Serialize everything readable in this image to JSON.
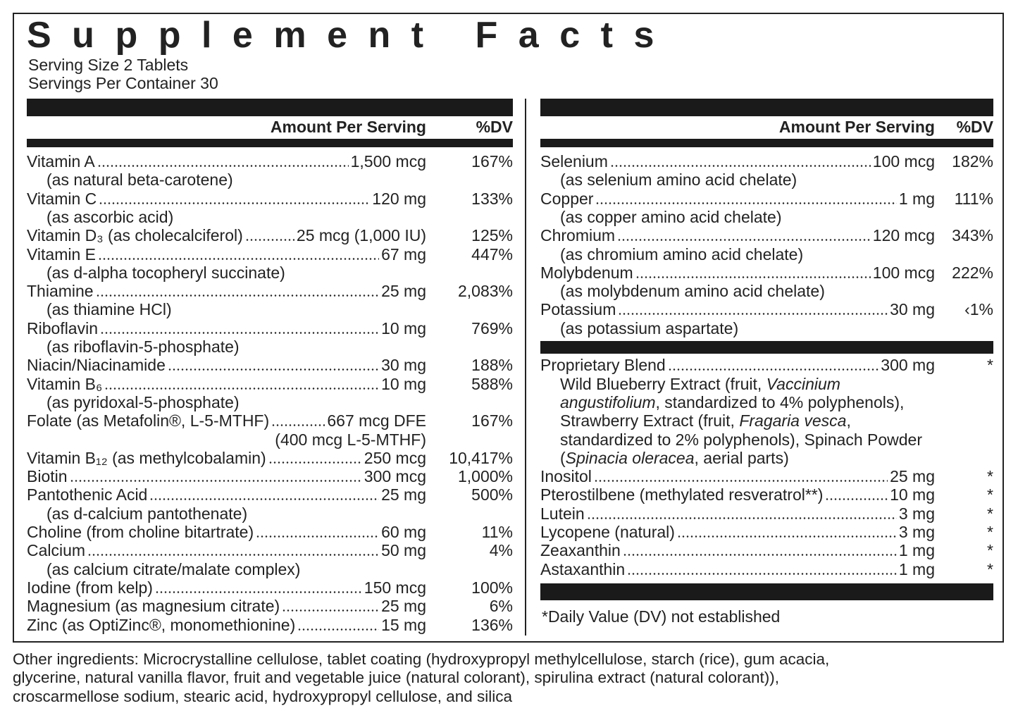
{
  "title": "Supplement Facts",
  "serving_size": "Serving Size 2 Tablets",
  "servings_per_container": "Servings Per Container 30",
  "left": {
    "header_amount": "Amount Per Serving",
    "header_dv": "%DV",
    "rows": [
      {
        "name": "Vitamin A",
        "amount": "1,500 mcg",
        "dv": "167%",
        "sub": "(as natural beta-carotene)"
      },
      {
        "name": "Vitamin C",
        "amount": "120 mg",
        "dv": "133%",
        "sub": "(as ascorbic acid)"
      },
      {
        "name": "Vitamin D₃ (as cholecalciferol)",
        "amount": "25 mcg (1,000 IU)",
        "dv": "125%"
      },
      {
        "name": "Vitamin E",
        "amount": "67 mg",
        "dv": "447%",
        "sub": "(as d-alpha tocopheryl succinate)"
      },
      {
        "name": "Thiamine",
        "amount": "25 mg",
        "dv": "2,083%",
        "sub": "(as thiamine HCl)"
      },
      {
        "name": "Riboflavin",
        "amount": "10 mg",
        "dv": "769%",
        "sub": "(as riboflavin-5-phosphate)"
      },
      {
        "name": "Niacin/Niacinamide",
        "amount": "30 mg",
        "dv": "188%"
      },
      {
        "name": "Vitamin B₆",
        "amount": "10 mg",
        "dv": "588%",
        "sub": "(as pyridoxal-5-phosphate)"
      },
      {
        "name": "Folate (as Metafolin®, L-5-MTHF)",
        "amount": "667 mcg DFE",
        "dv": "167%",
        "amount_note": "(400 mcg L-5-MTHF)"
      },
      {
        "name": "Vitamin B₁₂ (as methylcobalamin)",
        "amount": "250 mcg",
        "dv": "10,417%"
      },
      {
        "name": "Biotin",
        "amount": "300 mcg",
        "dv": "1,000%"
      },
      {
        "name": "Pantothenic Acid",
        "amount": "25 mg",
        "dv": "500%",
        "sub": "(as d-calcium pantothenate)"
      },
      {
        "name": "Choline (from choline bitartrate)",
        "amount": "60 mg",
        "dv": "11%"
      },
      {
        "name": "Calcium",
        "amount": "50 mg",
        "dv": "4%",
        "sub": "(as calcium citrate/malate complex)"
      },
      {
        "name": "Iodine (from kelp)",
        "amount": "150 mcg",
        "dv": "100%"
      },
      {
        "name": "Magnesium (as magnesium citrate)",
        "amount": "25 mg",
        "dv": "6%"
      },
      {
        "name": "Zinc (as OptiZinc®, monomethionine)",
        "amount": "15 mg",
        "dv": "136%"
      }
    ]
  },
  "right": {
    "header_amount": "Amount Per Serving",
    "header_dv": "%DV",
    "rows": [
      {
        "name": "Selenium",
        "amount": "100 mcg",
        "dv": "182%",
        "sub": "(as selenium amino acid chelate)"
      },
      {
        "name": "Copper",
        "amount": "1 mg",
        "dv": "111%",
        "sub": "(as copper amino acid chelate)"
      },
      {
        "name": "Chromium",
        "amount": "120 mcg",
        "dv": "343%",
        "sub": "(as chromium amino acid chelate)"
      },
      {
        "name": "Molybdenum",
        "amount": "100 mcg",
        "dv": "222%",
        "sub": "(as molybdenum amino acid chelate)"
      },
      {
        "name": "Potassium",
        "amount": "30 mg",
        "dv": "‹1%",
        "sub": "(as potassium aspartate)"
      }
    ],
    "blend": {
      "name": "Proprietary Blend",
      "amount": "300 mg",
      "dv": "*",
      "lines": [
        [
          {
            "text": "Wild Blueberry Extract (fruit, "
          },
          {
            "text": "Vaccinium",
            "italic": true
          }
        ],
        [
          {
            "text": "angustifolium",
            "italic": true
          },
          {
            "text": ", standardized to 4% polyphenols),"
          }
        ],
        [
          {
            "text": "Strawberry Extract (fruit, "
          },
          {
            "text": "Fragaria vesca",
            "italic": true
          },
          {
            "text": ","
          }
        ],
        [
          {
            "text": "standardized to 2% polyphenols), Spinach Powder"
          }
        ],
        [
          {
            "text": "("
          },
          {
            "text": "Spinacia oleracea",
            "italic": true
          },
          {
            "text": ", aerial parts)"
          }
        ]
      ]
    },
    "rows2": [
      {
        "name": "Inositol",
        "amount": "25 mg",
        "dv": "*"
      },
      {
        "name": "Pterostilbene (methylated resveratrol**)",
        "amount": "10 mg",
        "dv": "*"
      },
      {
        "name": "Lutein",
        "amount": "3 mg",
        "dv": "*"
      },
      {
        "name": "Lycopene (natural)",
        "amount": "3 mg",
        "dv": "*"
      },
      {
        "name": "Zeaxanthin",
        "amount": "1 mg",
        "dv": "*"
      },
      {
        "name": "Astaxanthin",
        "amount": "1 mg",
        "dv": "*"
      }
    ],
    "footnote": "*Daily Value (DV) not established"
  },
  "other_ingredients": [
    "Other ingredients: Microcrystalline cellulose, tablet coating (hydroxypropyl methylcellulose, starch (rice), gum acacia,",
    "glycerine, natural vanilla flavor, fruit and vegetable juice (natural colorant), spirulina extract (natural colorant)),",
    "croscarmellose sodium, stearic acid, hydroxypropyl cellulose, and silica"
  ]
}
